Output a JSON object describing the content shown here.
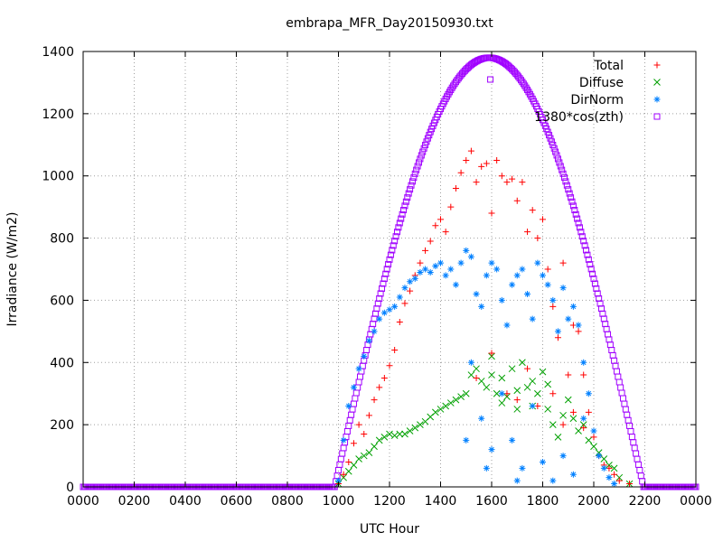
{
  "chart_data": {
    "type": "scatter",
    "title": "embrapa_MFR_Day20150930.txt",
    "xlabel": "UTC Hour",
    "ylabel": "Irradiance (W/m2)",
    "xlim": [
      0,
      24
    ],
    "ylim": [
      0,
      1400
    ],
    "x_ticks": [
      {
        "value": 0,
        "label": "0000"
      },
      {
        "value": 2,
        "label": "0200"
      },
      {
        "value": 4,
        "label": "0400"
      },
      {
        "value": 6,
        "label": "0600"
      },
      {
        "value": 8,
        "label": "0800"
      },
      {
        "value": 10,
        "label": "1000"
      },
      {
        "value": 12,
        "label": "1200"
      },
      {
        "value": 14,
        "label": "1400"
      },
      {
        "value": 16,
        "label": "1600"
      },
      {
        "value": 18,
        "label": "1800"
      },
      {
        "value": 20,
        "label": "2000"
      },
      {
        "value": 22,
        "label": "2200"
      },
      {
        "value": 24,
        "label": "0000"
      }
    ],
    "y_ticks": [
      0,
      200,
      400,
      600,
      800,
      1000,
      1200,
      1400
    ],
    "grid": true,
    "legend_position": "top-right",
    "series": [
      {
        "name": "Total",
        "color": "#ff0000",
        "marker": "plus",
        "points": [
          [
            10.0,
            10
          ],
          [
            10.2,
            40
          ],
          [
            10.4,
            80
          ],
          [
            10.6,
            140
          ],
          [
            10.8,
            200
          ],
          [
            11.0,
            170
          ],
          [
            11.2,
            230
          ],
          [
            11.4,
            280
          ],
          [
            11.6,
            320
          ],
          [
            11.8,
            350
          ],
          [
            12.0,
            390
          ],
          [
            12.2,
            440
          ],
          [
            12.4,
            530
          ],
          [
            12.6,
            590
          ],
          [
            12.8,
            630
          ],
          [
            13.0,
            680
          ],
          [
            13.2,
            720
          ],
          [
            13.4,
            760
          ],
          [
            13.6,
            790
          ],
          [
            13.8,
            840
          ],
          [
            14.0,
            860
          ],
          [
            14.2,
            820
          ],
          [
            14.4,
            900
          ],
          [
            14.6,
            960
          ],
          [
            14.8,
            1010
          ],
          [
            15.0,
            1050
          ],
          [
            15.2,
            1080
          ],
          [
            15.4,
            980
          ],
          [
            15.6,
            1030
          ],
          [
            15.8,
            1040
          ],
          [
            16.0,
            880
          ],
          [
            16.2,
            1050
          ],
          [
            16.4,
            1000
          ],
          [
            16.6,
            980
          ],
          [
            16.8,
            990
          ],
          [
            17.0,
            920
          ],
          [
            17.2,
            980
          ],
          [
            17.4,
            820
          ],
          [
            17.6,
            890
          ],
          [
            17.8,
            800
          ],
          [
            18.0,
            860
          ],
          [
            18.2,
            700
          ],
          [
            18.4,
            580
          ],
          [
            18.6,
            480
          ],
          [
            18.8,
            720
          ],
          [
            19.0,
            360
          ],
          [
            19.2,
            520
          ],
          [
            19.4,
            500
          ],
          [
            19.6,
            360
          ],
          [
            19.8,
            240
          ],
          [
            20.0,
            160
          ],
          [
            20.2,
            100
          ],
          [
            20.4,
            70
          ],
          [
            20.6,
            60
          ],
          [
            20.8,
            40
          ],
          [
            21.0,
            20
          ],
          [
            21.4,
            10
          ],
          [
            15.4,
            350
          ],
          [
            16.0,
            430
          ],
          [
            16.6,
            300
          ],
          [
            17.0,
            280
          ],
          [
            17.4,
            380
          ],
          [
            17.8,
            260
          ],
          [
            18.4,
            300
          ],
          [
            18.8,
            200
          ],
          [
            19.2,
            240
          ],
          [
            19.6,
            190
          ]
        ]
      },
      {
        "name": "Diffuse",
        "color": "#00a000",
        "marker": "cross",
        "points": [
          [
            10.0,
            10
          ],
          [
            10.2,
            30
          ],
          [
            10.4,
            50
          ],
          [
            10.6,
            70
          ],
          [
            10.8,
            90
          ],
          [
            11.0,
            100
          ],
          [
            11.2,
            110
          ],
          [
            11.4,
            130
          ],
          [
            11.6,
            150
          ],
          [
            11.8,
            160
          ],
          [
            12.0,
            170
          ],
          [
            12.2,
            165
          ],
          [
            12.4,
            170
          ],
          [
            12.6,
            170
          ],
          [
            12.8,
            180
          ],
          [
            13.0,
            190
          ],
          [
            13.2,
            200
          ],
          [
            13.4,
            210
          ],
          [
            13.6,
            225
          ],
          [
            13.8,
            240
          ],
          [
            14.0,
            250
          ],
          [
            14.2,
            260
          ],
          [
            14.4,
            270
          ],
          [
            14.6,
            280
          ],
          [
            14.8,
            290
          ],
          [
            15.0,
            300
          ],
          [
            15.2,
            360
          ],
          [
            15.4,
            380
          ],
          [
            15.6,
            340
          ],
          [
            15.8,
            320
          ],
          [
            16.0,
            360
          ],
          [
            16.2,
            300
          ],
          [
            16.4,
            350
          ],
          [
            16.6,
            290
          ],
          [
            16.8,
            380
          ],
          [
            17.0,
            310
          ],
          [
            17.2,
            400
          ],
          [
            17.4,
            320
          ],
          [
            17.6,
            260
          ],
          [
            17.8,
            300
          ],
          [
            18.0,
            370
          ],
          [
            18.2,
            250
          ],
          [
            18.4,
            200
          ],
          [
            18.6,
            160
          ],
          [
            18.8,
            230
          ],
          [
            19.0,
            280
          ],
          [
            19.2,
            220
          ],
          [
            19.4,
            180
          ],
          [
            19.6,
            200
          ],
          [
            19.8,
            150
          ],
          [
            20.0,
            130
          ],
          [
            20.2,
            110
          ],
          [
            20.4,
            90
          ],
          [
            20.6,
            70
          ],
          [
            20.8,
            60
          ],
          [
            21.0,
            30
          ],
          [
            21.4,
            10
          ],
          [
            16.0,
            420
          ],
          [
            16.4,
            270
          ],
          [
            17.0,
            250
          ],
          [
            17.6,
            340
          ],
          [
            18.2,
            330
          ]
        ]
      },
      {
        "name": "DirNorm",
        "color": "#0080ff",
        "marker": "star",
        "points": [
          [
            10.0,
            20
          ],
          [
            10.2,
            150
          ],
          [
            10.4,
            260
          ],
          [
            10.6,
            320
          ],
          [
            10.8,
            380
          ],
          [
            11.0,
            420
          ],
          [
            11.2,
            470
          ],
          [
            11.4,
            500
          ],
          [
            11.6,
            540
          ],
          [
            11.8,
            560
          ],
          [
            12.0,
            570
          ],
          [
            12.2,
            580
          ],
          [
            12.4,
            610
          ],
          [
            12.6,
            640
          ],
          [
            12.8,
            660
          ],
          [
            13.0,
            670
          ],
          [
            13.2,
            690
          ],
          [
            13.4,
            700
          ],
          [
            13.6,
            690
          ],
          [
            13.8,
            710
          ],
          [
            14.0,
            720
          ],
          [
            14.2,
            680
          ],
          [
            14.4,
            700
          ],
          [
            14.6,
            650
          ],
          [
            14.8,
            720
          ],
          [
            15.0,
            760
          ],
          [
            15.2,
            740
          ],
          [
            15.4,
            620
          ],
          [
            15.6,
            580
          ],
          [
            15.8,
            680
          ],
          [
            16.0,
            720
          ],
          [
            16.2,
            700
          ],
          [
            16.4,
            600
          ],
          [
            16.6,
            520
          ],
          [
            16.8,
            650
          ],
          [
            17.0,
            680
          ],
          [
            17.2,
            700
          ],
          [
            17.4,
            620
          ],
          [
            17.6,
            540
          ],
          [
            17.8,
            720
          ],
          [
            18.0,
            680
          ],
          [
            18.2,
            650
          ],
          [
            18.4,
            600
          ],
          [
            18.6,
            500
          ],
          [
            18.8,
            640
          ],
          [
            19.0,
            540
          ],
          [
            19.2,
            580
          ],
          [
            19.4,
            520
          ],
          [
            19.6,
            400
          ],
          [
            19.8,
            300
          ],
          [
            20.0,
            180
          ],
          [
            20.2,
            100
          ],
          [
            20.4,
            60
          ],
          [
            20.6,
            30
          ],
          [
            20.8,
            10
          ],
          [
            15.2,
            400
          ],
          [
            15.6,
            220
          ],
          [
            16.0,
            120
          ],
          [
            16.4,
            300
          ],
          [
            16.8,
            150
          ],
          [
            17.2,
            60
          ],
          [
            17.6,
            260
          ],
          [
            18.0,
            80
          ],
          [
            18.4,
            20
          ],
          [
            18.8,
            100
          ],
          [
            19.2,
            40
          ],
          [
            19.6,
            220
          ],
          [
            15.0,
            150
          ],
          [
            15.8,
            60
          ],
          [
            17.0,
            20
          ]
        ]
      },
      {
        "name": "1380*cos(zth)",
        "color": "#a000ff",
        "marker": "square",
        "amplitude": 1380,
        "sunrise": 9.85,
        "sunset": 21.95,
        "outlier": [
          15.95,
          1310
        ]
      }
    ]
  }
}
